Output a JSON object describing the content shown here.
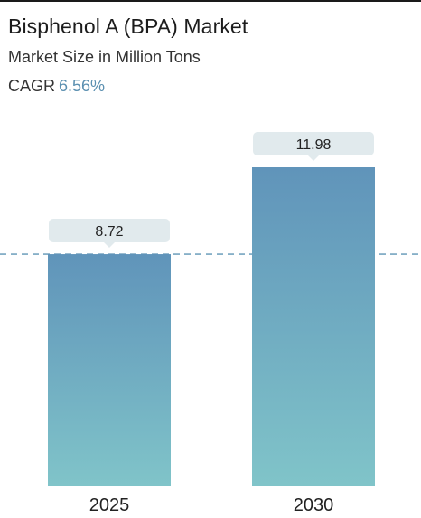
{
  "header": {
    "title": "Bisphenol A (BPA) Market",
    "subtitle": "Market Size in Million Tons",
    "cagr_label": "CAGR",
    "cagr_value": "6.56%"
  },
  "colors": {
    "bar_top": "#6094ba",
    "bar_bottom": "#80c4c9",
    "label_box": "#e1eaed",
    "reference_line": "#5f95b5",
    "cagr_value": "#5a8fb0"
  },
  "chart_data": {
    "type": "bar",
    "categories": [
      "2025",
      "2030"
    ],
    "values": [
      8.72,
      11.98
    ],
    "data_labels": [
      "8.72",
      "11.98"
    ],
    "title": "Bisphenol A (BPA) Market",
    "subtitle": "Market Size in Million Tons",
    "xlabel": "",
    "ylabel": "",
    "reference_line": 8.72,
    "grid": false,
    "legend": "none"
  }
}
